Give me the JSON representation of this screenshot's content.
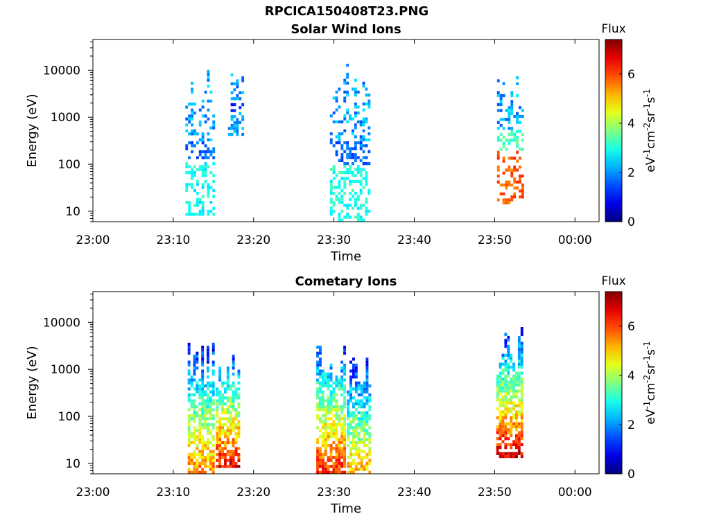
{
  "figure": {
    "title": "RPCICA150408T23.PNG"
  },
  "colorbar": {
    "label": "Flux",
    "ticks": [
      "0",
      "2",
      "4",
      "6"
    ],
    "tick_values": [
      0,
      2,
      4,
      6
    ],
    "range": [
      0,
      7.4
    ],
    "unit_parts": [
      "eV",
      "-1",
      "cm",
      "-2",
      "sr",
      "-1",
      "s",
      "-1"
    ],
    "colormap": "jet"
  },
  "chart_data": [
    {
      "type": "heatmap",
      "title": "Solar Wind Ions",
      "xlabel": "Time",
      "ylabel": "Energy (eV)",
      "xticks": [
        "23:00",
        "23:10",
        "23:20",
        "23:30",
        "23:40",
        "23:50",
        "00:00"
      ],
      "xtick_minutes": [
        0,
        10,
        20,
        30,
        40,
        50,
        60
      ],
      "xlim_minutes": [
        0,
        63
      ],
      "yscale": "log",
      "yticks": [
        "10",
        "100",
        "1000",
        "10000"
      ],
      "ytick_values": [
        10,
        100,
        1000,
        10000
      ],
      "ylim": [
        6,
        45000
      ],
      "grid": false,
      "clusters": [
        {
          "t": [
            11.5,
            15.2
          ],
          "e": [
            8,
            11000
          ],
          "peak_flux": 3.2
        },
        {
          "t": [
            16.8,
            18.5
          ],
          "e": [
            400,
            11000
          ],
          "peak_flux": 2.4
        },
        {
          "t": [
            29.5,
            34.3
          ],
          "e": [
            6,
            14000
          ],
          "peak_flux": 3.3
        },
        {
          "t": [
            50.3,
            53.5
          ],
          "e": [
            14,
            19000
          ],
          "peak_flux": 6.5
        }
      ]
    },
    {
      "type": "heatmap",
      "title": "Cometary Ions",
      "xlabel": "Time",
      "ylabel": "Energy (eV)",
      "xticks": [
        "23:00",
        "23:10",
        "23:20",
        "23:30",
        "23:40",
        "23:50",
        "00:00"
      ],
      "xtick_minutes": [
        0,
        10,
        20,
        30,
        40,
        50,
        60
      ],
      "xlim_minutes": [
        0,
        63
      ],
      "yscale": "log",
      "yticks": [
        "10",
        "100",
        "1000",
        "10000"
      ],
      "ytick_values": [
        10,
        100,
        1000,
        10000
      ],
      "ylim": [
        6,
        45000
      ],
      "grid": false,
      "clusters": [
        {
          "t": [
            11.8,
            15.0
          ],
          "e": [
            6,
            4500
          ],
          "peak_flux": 5.6
        },
        {
          "t": [
            15.3,
            18.3
          ],
          "e": [
            8,
            2600
          ],
          "peak_flux": 6.6
        },
        {
          "t": [
            27.8,
            31.3
          ],
          "e": [
            6,
            5000
          ],
          "peak_flux": 6.3
        },
        {
          "t": [
            31.6,
            34.3
          ],
          "e": [
            6,
            2100
          ],
          "peak_flux": 5.2
        },
        {
          "t": [
            50.2,
            53.4
          ],
          "e": [
            13,
            7000
          ],
          "peak_flux": 6.8
        }
      ]
    }
  ]
}
